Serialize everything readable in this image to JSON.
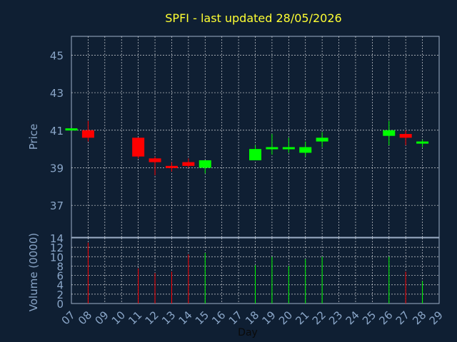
{
  "chart_data": {
    "type": "candlestick",
    "title": "SPFI - last updated 28/05/2026",
    "xlabel": "Day",
    "price_panel": {
      "ylabel": "Price",
      "ylim": [
        35.3,
        46.0
      ],
      "yticks": [
        37,
        39,
        41,
        43,
        45
      ],
      "grid": true
    },
    "volume_panel": {
      "ylabel": "Volume (0000)",
      "ylim": [
        0,
        14
      ],
      "yticks": [
        0,
        2,
        4,
        6,
        8,
        10,
        12,
        14
      ],
      "grid": true
    },
    "x_ticks": [
      "07",
      "08",
      "09",
      "10",
      "11",
      "12",
      "13",
      "14",
      "15",
      "16",
      "17",
      "18",
      "19",
      "20",
      "21",
      "22",
      "23",
      "24",
      "25",
      "26",
      "27",
      "28",
      "29"
    ],
    "up_color": "#00ff00",
    "down_color": "#ff0000",
    "candles": [
      {
        "day": "07",
        "open": 41.0,
        "high": 41.1,
        "low": 41.0,
        "close": 41.1,
        "volume": 0
      },
      {
        "day": "08",
        "open": 41.0,
        "high": 41.5,
        "low": 40.4,
        "close": 40.6,
        "volume": 13
      },
      {
        "day": "11",
        "open": 40.6,
        "high": 40.6,
        "low": 39.5,
        "close": 39.6,
        "volume": 7.5
      },
      {
        "day": "12",
        "open": 39.5,
        "high": 39.6,
        "low": 38.6,
        "close": 39.3,
        "volume": 6.5
      },
      {
        "day": "13",
        "open": 39.1,
        "high": 39.3,
        "low": 38.8,
        "close": 39.0,
        "volume": 6.8
      },
      {
        "day": "14",
        "open": 39.3,
        "high": 39.5,
        "low": 39.0,
        "close": 39.1,
        "volume": 10.5
      },
      {
        "day": "15",
        "open": 39.0,
        "high": 39.4,
        "low": 38.7,
        "close": 39.4,
        "volume": 10.8
      },
      {
        "day": "18",
        "open": 39.4,
        "high": 40.2,
        "low": 39.4,
        "close": 40.0,
        "volume": 8.2
      },
      {
        "day": "19",
        "open": 40.0,
        "high": 40.8,
        "low": 39.7,
        "close": 40.1,
        "volume": 10.0
      },
      {
        "day": "20",
        "open": 40.0,
        "high": 40.6,
        "low": 39.8,
        "close": 40.1,
        "volume": 8.0
      },
      {
        "day": "21",
        "open": 39.8,
        "high": 40.4,
        "low": 39.6,
        "close": 40.1,
        "volume": 9.5
      },
      {
        "day": "22",
        "open": 40.4,
        "high": 40.9,
        "low": 40.1,
        "close": 40.6,
        "volume": 10.0
      },
      {
        "day": "26",
        "open": 40.7,
        "high": 41.5,
        "low": 40.2,
        "close": 41.0,
        "volume": 10.0
      },
      {
        "day": "27",
        "open": 40.8,
        "high": 41.0,
        "low": 40.2,
        "close": 40.6,
        "volume": 6.8
      },
      {
        "day": "28",
        "open": 40.4,
        "high": 40.5,
        "low": 40.1,
        "close": 40.4,
        "volume": 4.8
      }
    ]
  }
}
